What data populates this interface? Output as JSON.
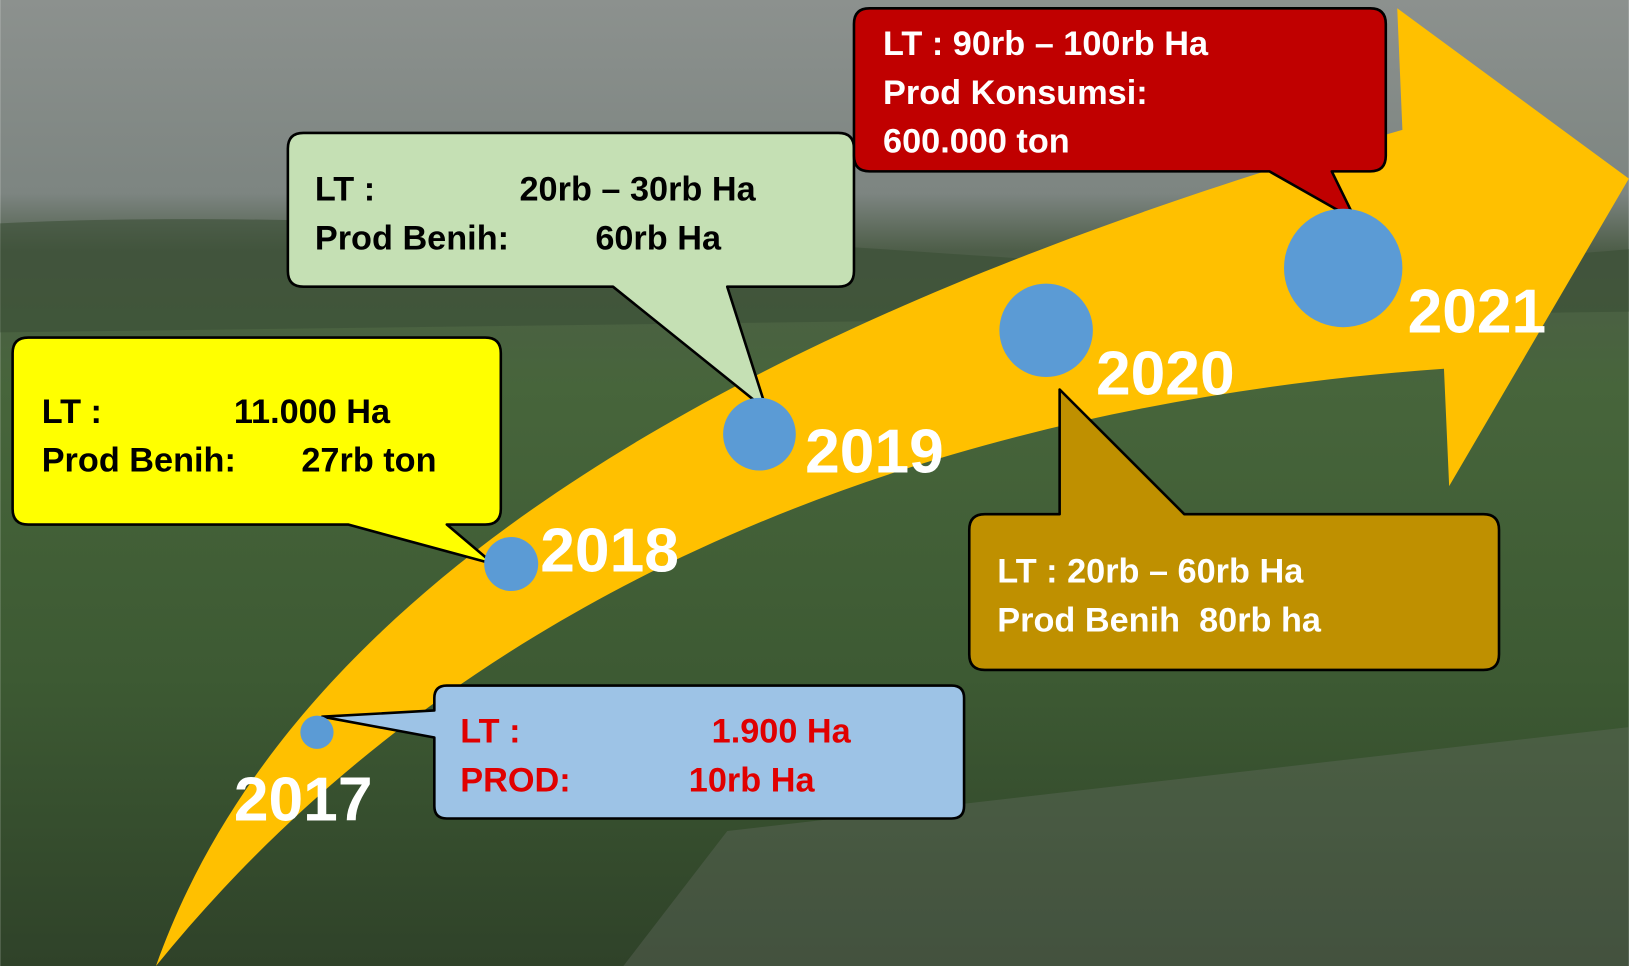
{
  "milestones": [
    {
      "year": "2017",
      "lines": [
        [
          "LT :",
          "1.900 Ha"
        ],
        [
          "PROD:",
          "10rb Ha"
        ]
      ]
    },
    {
      "year": "2018",
      "lines": [
        [
          "LT :",
          "11.000 Ha"
        ],
        [
          "Prod Benih:",
          "27rb ton"
        ]
      ]
    },
    {
      "year": "2019",
      "lines": [
        [
          "LT :",
          "20rb – 30rb Ha"
        ],
        [
          "Prod Benih:",
          "60rb Ha"
        ]
      ]
    },
    {
      "year": "2020",
      "lines": [
        [
          "LT : 20rb – 60rb Ha"
        ],
        [
          "Prod Benih  80rb ha"
        ]
      ]
    },
    {
      "year": "2021",
      "lines": [
        [
          "LT : 90rb – 100rb Ha"
        ],
        [
          "Prod Konsumsi:"
        ],
        [
          "600.000 ton"
        ]
      ]
    }
  ]
}
